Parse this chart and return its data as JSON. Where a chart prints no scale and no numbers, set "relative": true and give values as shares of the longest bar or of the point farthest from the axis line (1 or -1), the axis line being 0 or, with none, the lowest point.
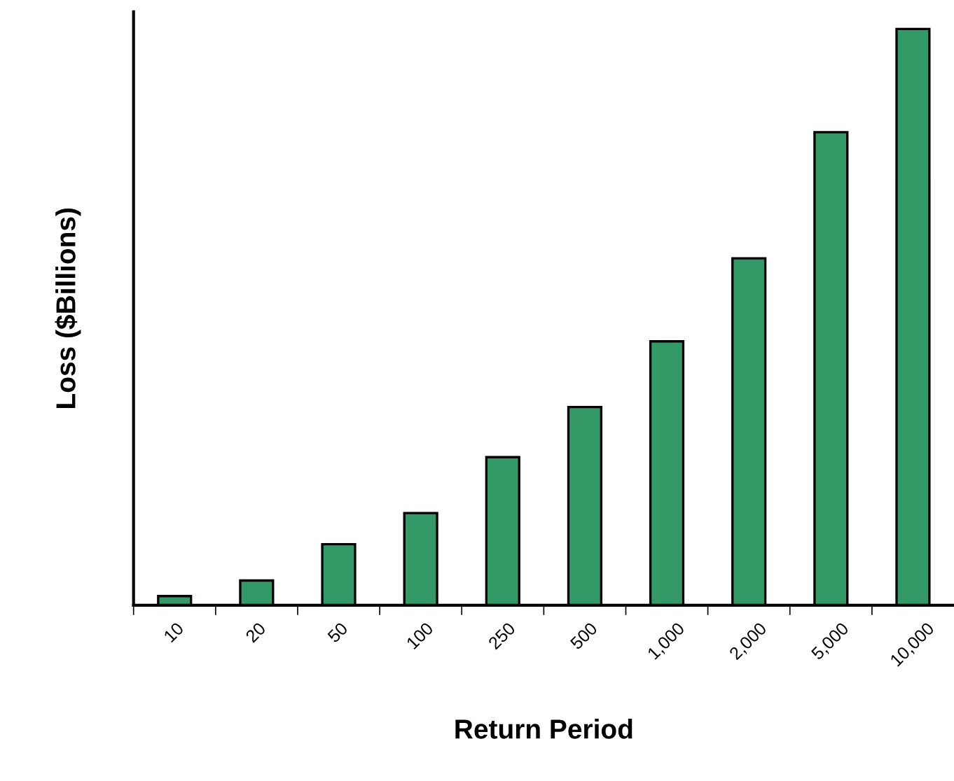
{
  "chart_data": {
    "type": "bar",
    "relative": true,
    "xlabel": "Return Period",
    "ylabel": "Loss ($Billions)",
    "categories": [
      "10",
      "20",
      "50",
      "100",
      "250",
      "500",
      "1,000",
      "2,000",
      "5,000",
      "10,000"
    ],
    "values": [
      0.016,
      0.043,
      0.106,
      0.16,
      0.257,
      0.344,
      0.458,
      0.602,
      0.821,
      1
    ],
    "color": "#339966",
    "grid": false,
    "legend": false
  }
}
